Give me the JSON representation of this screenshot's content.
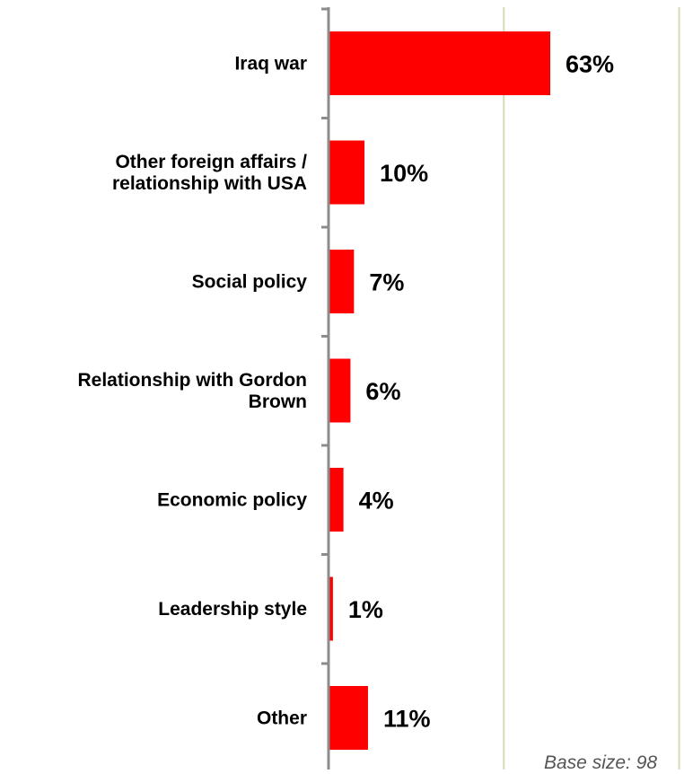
{
  "chart_data": {
    "type": "bar",
    "orientation": "horizontal",
    "categories": [
      [
        "Iraq war"
      ],
      [
        "Other foreign affairs /",
        "relationship with USA"
      ],
      [
        "Social policy"
      ],
      [
        "Relationship with Gordon",
        "Brown"
      ],
      [
        "Economic policy"
      ],
      [
        "Leadership style"
      ],
      [
        "Other"
      ]
    ],
    "values": [
      63,
      10,
      7,
      6,
      4,
      1,
      11
    ],
    "value_labels": [
      "63%",
      "10%",
      "7%",
      "6%",
      "4%",
      "1%",
      "11%"
    ],
    "xlim": [
      0,
      100
    ],
    "grid": true,
    "bar_color": "#ff0000",
    "grid_color": "#d6dcb4",
    "axis_color": "#8c8c8c"
  },
  "footnote": "Base size: 98"
}
